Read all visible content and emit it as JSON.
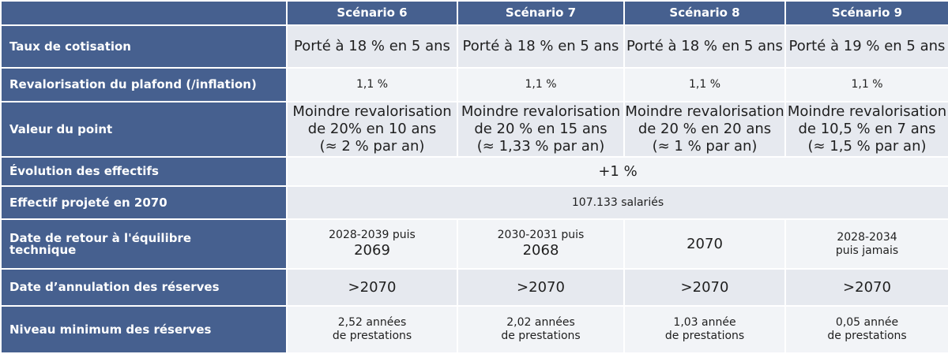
{
  "table": {
    "header": [
      "Scénario 6",
      "Scénario 7",
      "Scénario 8",
      "Scénario 9"
    ],
    "rows": [
      {
        "label": [
          "Taux de cotisation"
        ],
        "cells": [
          [
            "Porté à 18 % en 5 ans"
          ],
          [
            "Porté à 18 % en 5 ans"
          ],
          [
            "Porté à 18 % en 5 ans"
          ],
          [
            "Porté à 19 % en 5 ans"
          ]
        ]
      },
      {
        "label": [
          "Revalorisation du plafond (/inflation)"
        ],
        "cells": [
          [
            "1,1 %"
          ],
          [
            "1,1 %"
          ],
          [
            "1,1 %"
          ],
          [
            "1,1 %"
          ]
        ]
      },
      {
        "label": [
          "Valeur du point"
        ],
        "cells": [
          [
            "Moindre revalorisation",
            "de 20% en 10 ans",
            "(≈ 2 % par an)"
          ],
          [
            "Moindre revalorisation",
            "de 20 % en 15 ans",
            "(≈ 1,33 % par an)"
          ],
          [
            "Moindre revalorisation",
            "de 20 % en 20 ans",
            "(≈ 1 % par an)"
          ],
          [
            "Moindre revalorisation",
            "de 10,5 % en 7 ans",
            "(≈ 1,5 % par an)"
          ]
        ]
      },
      {
        "label": [
          "Évolution des effectifs"
        ],
        "cells": [
          [
            "+1 %"
          ]
        ]
      },
      {
        "label": [
          "Effectif projeté en 2070"
        ],
        "cells": [
          [
            "107.133 salariés"
          ]
        ]
      },
      {
        "label": [
          "Date de retour à l'équilibre",
          "technique"
        ],
        "cells": [
          [
            "2028-2039 puis",
            "2069"
          ],
          [
            "2030-2031 puis",
            "2068"
          ],
          [
            "2070"
          ],
          [
            "2028-2034",
            "puis jamais"
          ]
        ]
      },
      {
        "label": [
          "Date d’annulation des réserves"
        ],
        "cells": [
          [
            ">2070"
          ],
          [
            ">2070"
          ],
          [
            ">2070"
          ],
          [
            ">2070"
          ]
        ]
      },
      {
        "label": [
          "Niveau minimum des réserves"
        ],
        "cells": [
          [
            "2,52 années",
            "de prestations"
          ],
          [
            "2,02 années",
            "de prestations"
          ],
          [
            "1,03 année",
            "de prestations"
          ],
          [
            "0,05 année",
            "de prestations"
          ]
        ]
      }
    ]
  }
}
